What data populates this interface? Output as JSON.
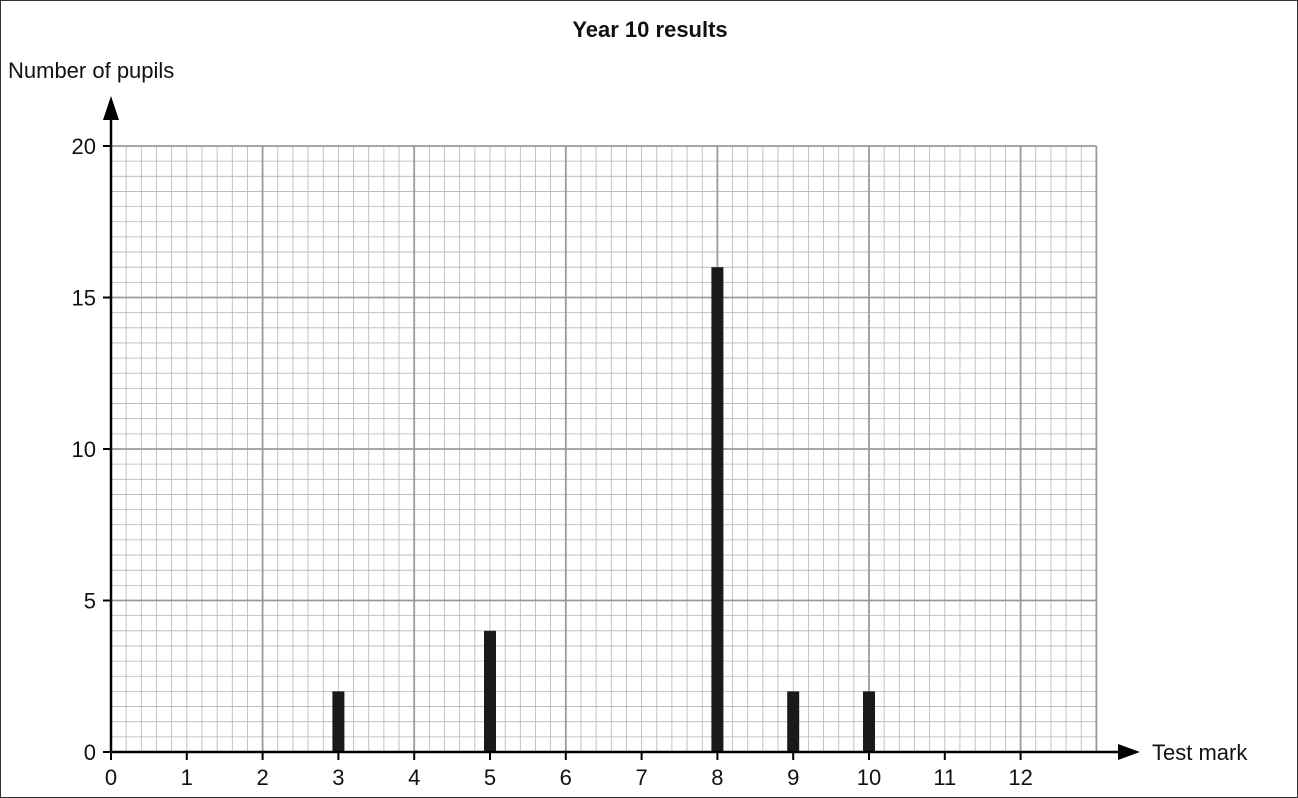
{
  "chart_data": {
    "type": "bar",
    "title": "Year 10 results",
    "xlabel": "Test mark",
    "ylabel": "Number of pupils",
    "xlim": [
      0,
      13
    ],
    "ylim": [
      0,
      20
    ],
    "x_ticks": [
      "0",
      "1",
      "2",
      "3",
      "4",
      "5",
      "6",
      "7",
      "8",
      "9",
      "10",
      "11",
      "12"
    ],
    "y_ticks": [
      "0",
      "5",
      "10",
      "15",
      "20"
    ],
    "categories": [
      "3",
      "5",
      "8",
      "9",
      "10"
    ],
    "x": [
      3,
      5,
      8,
      9,
      10
    ],
    "values": [
      2,
      4,
      16,
      2,
      2
    ],
    "grid": true,
    "colors": {
      "bar": "#1a1a1a",
      "major_grid": "#9a9a9a",
      "minor_grid": "#b5b5b5",
      "axis": "#000000"
    }
  }
}
